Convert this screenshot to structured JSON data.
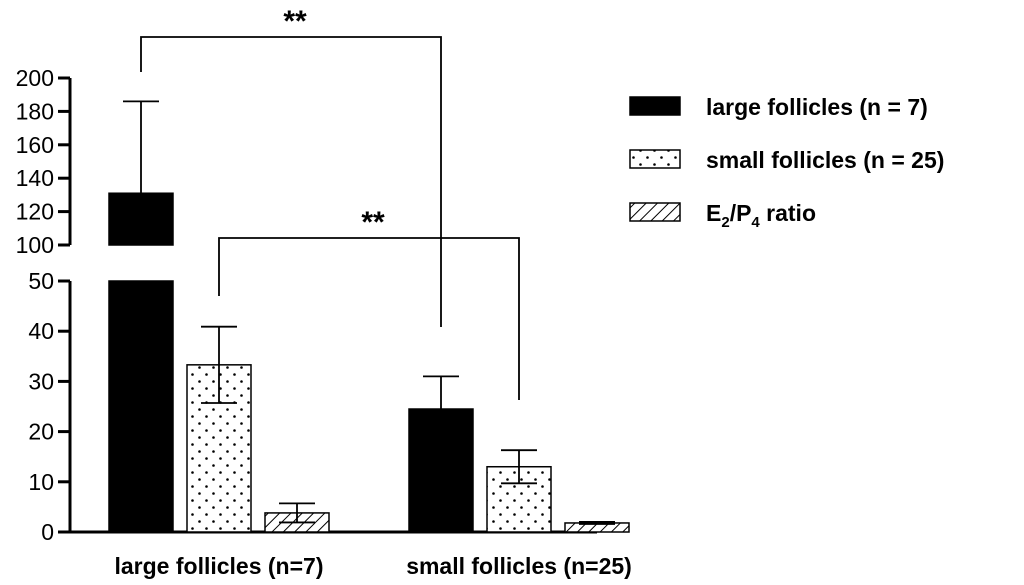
{
  "chart_data": {
    "type": "bar",
    "categories": [
      "large follicles (n=7)",
      "small follicles (n=25)"
    ],
    "series": [
      {
        "name": "large follicles (n = 7)",
        "pattern": "solid",
        "values": [
          131,
          24.5
        ],
        "error": [
          55,
          6.5
        ]
      },
      {
        "name": "small follicles (n = 25)",
        "pattern": "dots",
        "values": [
          33.3,
          13.0
        ],
        "error": [
          7.6,
          3.3
        ]
      },
      {
        "name": "E2/P4 ratio",
        "name_parts": {
          "base1": "E",
          "sub1": "2",
          "sep": "/P",
          "sub2": "4",
          "tail": " ratio"
        },
        "pattern": "hatch",
        "values": [
          3.8,
          1.8
        ],
        "error": [
          1.9,
          0.2
        ]
      }
    ],
    "y_axis": {
      "broken": true,
      "lower_segment": {
        "range": [
          0,
          50
        ],
        "ticks": [
          "0",
          "10",
          "20",
          "30",
          "40",
          "50"
        ]
      },
      "upper_segment": {
        "range": [
          100,
          200
        ],
        "ticks": [
          "100",
          "120",
          "140",
          "160",
          "180",
          "200"
        ]
      }
    },
    "ylabel": "",
    "xlabel": "",
    "legend": {
      "position": "top-right"
    },
    "grid": false,
    "annotations": [
      {
        "text": "**",
        "from": {
          "category": 0,
          "series": 0
        },
        "to": {
          "category": 1,
          "series": 0
        }
      },
      {
        "text": "**",
        "from": {
          "category": 0,
          "series": 1
        },
        "to": {
          "category": 1,
          "series": 1
        }
      }
    ],
    "colors": {
      "ink": "#000000",
      "background": "#ffffff"
    }
  }
}
